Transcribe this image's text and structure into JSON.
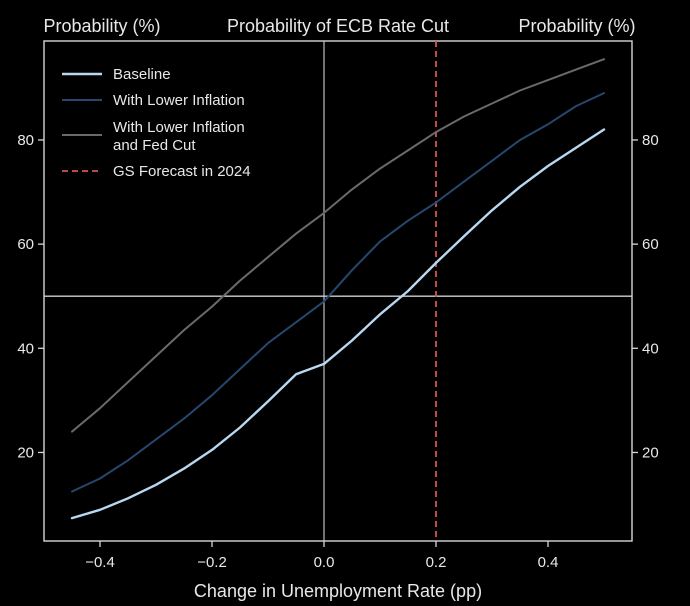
{
  "chart_data": {
    "type": "line",
    "title": "Probability of ECB Rate Cut",
    "ylabel_left": "Probability (%)",
    "ylabel_right": "Probability (%)",
    "xlabel": "Change in Unemployment Rate (pp)",
    "xlim": [
      -0.5,
      0.55
    ],
    "ylim": [
      3,
      99
    ],
    "x_ticks": [
      -0.4,
      -0.2,
      0.0,
      0.2,
      0.4
    ],
    "x_tick_labels": [
      "−0.4",
      "−0.2",
      "0.0",
      "0.2",
      "0.4"
    ],
    "y_ticks": [
      20,
      40,
      60,
      80
    ],
    "y_tick_labels": [
      "20",
      "40",
      "60",
      "80"
    ],
    "legend_position": "top-left",
    "reference_lines": {
      "vertical_x": 0.0,
      "horizontal_y": 50
    },
    "forecast_line": {
      "name": "GS Forecast in 2024",
      "x": 0.2,
      "color": "#d9534f"
    },
    "series": [
      {
        "name": "Baseline",
        "color": "#b8d8f2",
        "x": [
          -0.45,
          -0.4,
          -0.35,
          -0.3,
          -0.25,
          -0.2,
          -0.15,
          -0.1,
          -0.05,
          0.0,
          0.05,
          0.1,
          0.15,
          0.2,
          0.25,
          0.3,
          0.35,
          0.4,
          0.45,
          0.5
        ],
        "y": [
          7.4,
          9.0,
          11.2,
          13.8,
          16.9,
          20.5,
          24.8,
          29.8,
          35.0,
          37.0,
          41.5,
          46.5,
          51.0,
          56.4,
          61.5,
          66.5,
          71.0,
          75.0,
          78.5,
          82.0
        ]
      },
      {
        "name": "With Lower Inflation",
        "color": "#26476e",
        "x": [
          -0.45,
          -0.4,
          -0.35,
          -0.3,
          -0.25,
          -0.2,
          -0.15,
          -0.1,
          -0.05,
          0.0,
          0.05,
          0.1,
          0.15,
          0.2,
          0.25,
          0.3,
          0.35,
          0.4,
          0.45,
          0.5
        ],
        "y": [
          12.5,
          15.0,
          18.5,
          22.5,
          26.5,
          31.0,
          36.0,
          41.0,
          45.0,
          49.0,
          55.0,
          60.5,
          64.5,
          68.0,
          72.0,
          76.0,
          80.0,
          83.0,
          86.5,
          89.0
        ]
      },
      {
        "name": "With Lower Inflation and Fed Cut",
        "label_lines": [
          "With Lower Inflation",
          "and Fed Cut"
        ],
        "color": "#6a6a6a",
        "x": [
          -0.45,
          -0.4,
          -0.35,
          -0.3,
          -0.25,
          -0.2,
          -0.15,
          -0.1,
          -0.05,
          0.0,
          0.05,
          0.1,
          0.15,
          0.2,
          0.25,
          0.3,
          0.35,
          0.4,
          0.45,
          0.5
        ],
        "y": [
          24.0,
          28.5,
          33.5,
          38.5,
          43.5,
          48.0,
          53.0,
          57.5,
          62.0,
          66.0,
          70.5,
          74.5,
          78.0,
          81.5,
          84.5,
          87.0,
          89.5,
          91.5,
          93.5,
          95.5
        ]
      }
    ]
  }
}
